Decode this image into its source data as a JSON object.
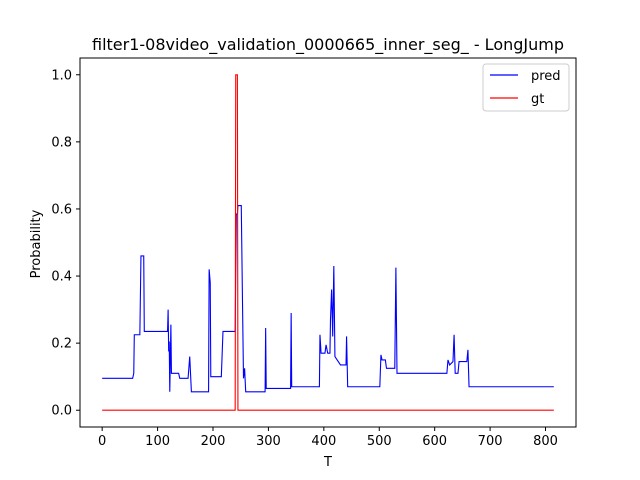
{
  "chart_data": {
    "type": "line",
    "title": "filter1-08video_validation_0000665_inner_seg_ - LongJump",
    "xlabel": "T",
    "ylabel": "Probability",
    "xlim": [
      -40,
      855
    ],
    "ylim": [
      -0.05,
      1.05
    ],
    "xticks": [
      0,
      100,
      200,
      300,
      400,
      500,
      600,
      700,
      800
    ],
    "yticks": [
      0.0,
      0.2,
      0.4,
      0.6,
      0.8,
      1.0
    ],
    "ytick_labels": [
      "0.0",
      "0.2",
      "0.4",
      "0.6",
      "0.8",
      "1.0"
    ],
    "legend_position": "upper right",
    "grid": false,
    "series": [
      {
        "name": "pred",
        "color": "#0000ff",
        "points": [
          [
            0,
            0.095
          ],
          [
            55,
            0.095
          ],
          [
            57,
            0.11
          ],
          [
            58,
            0.225
          ],
          [
            68,
            0.225
          ],
          [
            70,
            0.46
          ],
          [
            75,
            0.46
          ],
          [
            76,
            0.235
          ],
          [
            118,
            0.235
          ],
          [
            119,
            0.3
          ],
          [
            120,
            0.175
          ],
          [
            121,
            0.205
          ],
          [
            122,
            0.055
          ],
          [
            124,
            0.255
          ],
          [
            125,
            0.11
          ],
          [
            128,
            0.11
          ],
          [
            138,
            0.11
          ],
          [
            140,
            0.095
          ],
          [
            155,
            0.095
          ],
          [
            158,
            0.16
          ],
          [
            161,
            0.055
          ],
          [
            192,
            0.055
          ],
          [
            193,
            0.42
          ],
          [
            195,
            0.38
          ],
          [
            196,
            0.1
          ],
          [
            215,
            0.1
          ],
          [
            218,
            0.235
          ],
          [
            240,
            0.235
          ],
          [
            242,
            0.585
          ],
          [
            244,
            0.585
          ],
          [
            245,
            0.61
          ],
          [
            251,
            0.61
          ],
          [
            253,
            0.35
          ],
          [
            255,
            0.095
          ],
          [
            257,
            0.125
          ],
          [
            259,
            0.055
          ],
          [
            294,
            0.055
          ],
          [
            295,
            0.245
          ],
          [
            296,
            0.065
          ],
          [
            340,
            0.065
          ],
          [
            341,
            0.29
          ],
          [
            342,
            0.07
          ],
          [
            392,
            0.07
          ],
          [
            393,
            0.225
          ],
          [
            395,
            0.17
          ],
          [
            402,
            0.17
          ],
          [
            404,
            0.195
          ],
          [
            407,
            0.17
          ],
          [
            411,
            0.17
          ],
          [
            412,
            0.27
          ],
          [
            414,
            0.36
          ],
          [
            416,
            0.22
          ],
          [
            418,
            0.43
          ],
          [
            420,
            0.16
          ],
          [
            430,
            0.135
          ],
          [
            440,
            0.135
          ],
          [
            441,
            0.22
          ],
          [
            443,
            0.07
          ],
          [
            501,
            0.07
          ],
          [
            503,
            0.165
          ],
          [
            505,
            0.15
          ],
          [
            511,
            0.15
          ],
          [
            513,
            0.125
          ],
          [
            528,
            0.125
          ],
          [
            530,
            0.425
          ],
          [
            532,
            0.11
          ],
          [
            622,
            0.11
          ],
          [
            624,
            0.15
          ],
          [
            627,
            0.135
          ],
          [
            633,
            0.145
          ],
          [
            635,
            0.225
          ],
          [
            637,
            0.11
          ],
          [
            642,
            0.11
          ],
          [
            644,
            0.145
          ],
          [
            658,
            0.145
          ],
          [
            660,
            0.18
          ],
          [
            662,
            0.07
          ],
          [
            815,
            0.07
          ]
        ]
      },
      {
        "name": "gt",
        "color": "#ff0000",
        "points": [
          [
            0,
            0
          ],
          [
            240,
            0
          ],
          [
            241,
            1
          ],
          [
            244,
            1
          ],
          [
            245,
            0
          ],
          [
            815,
            0
          ]
        ]
      }
    ]
  }
}
